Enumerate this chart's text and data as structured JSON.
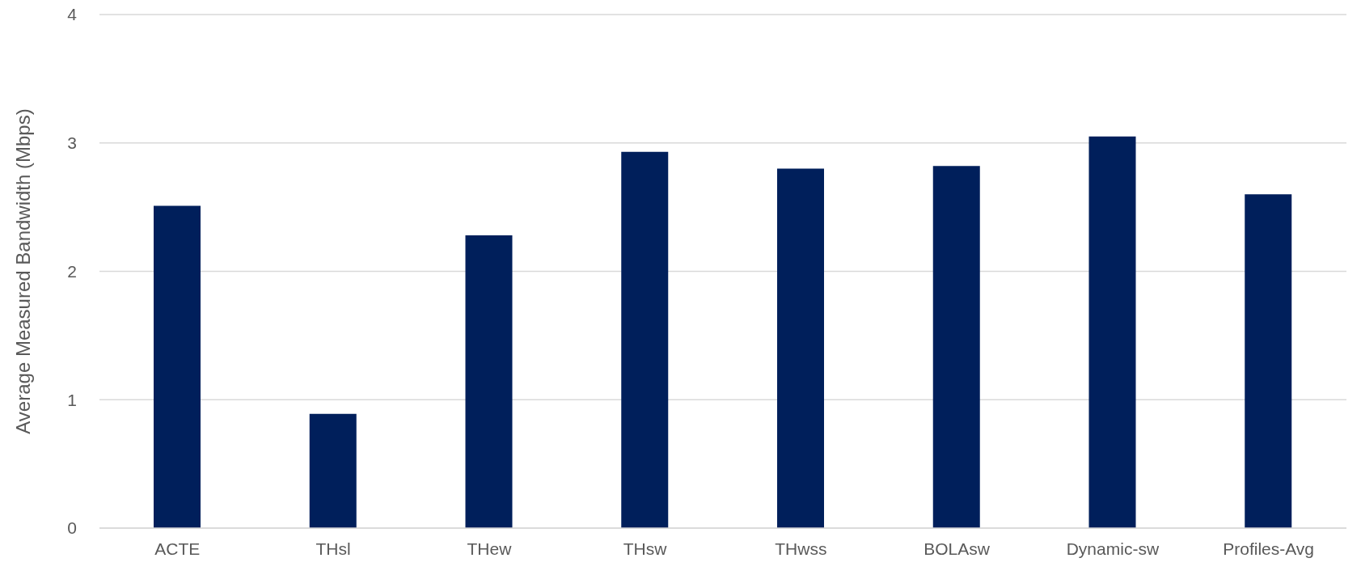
{
  "chart_data": {
    "type": "bar",
    "ylabel": "Average Measured Bandwidth (Mbps)",
    "categories": [
      "ACTE",
      "THsl",
      "THew",
      "THsw",
      "THwss",
      "BOLAsw",
      "Dynamic-sw",
      "Profiles-Avg"
    ],
    "values": [
      2.51,
      0.89,
      2.28,
      2.93,
      2.8,
      2.82,
      3.05,
      2.6
    ],
    "color": "#001f5b",
    "ylim": [
      0,
      4
    ],
    "yticks": [
      0,
      1,
      2,
      3,
      4
    ],
    "grid": "y",
    "legend": false
  }
}
